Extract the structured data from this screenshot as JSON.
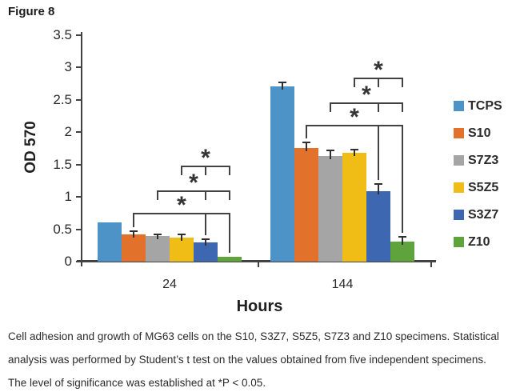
{
  "figure_label": "Figure 8",
  "chart_data": {
    "type": "bar",
    "title": "",
    "xlabel": "Hours",
    "ylabel": "OD 570",
    "ylim": [
      0,
      3.5
    ],
    "yticks": [
      0,
      0.5,
      1,
      1.5,
      2,
      2.5,
      3,
      3.5
    ],
    "grid": false,
    "legend_position": "right",
    "categories": [
      "24",
      "144"
    ],
    "series": [
      {
        "name": "TCPS",
        "color": "#4d93c8",
        "values": [
          0.6,
          2.7
        ],
        "errors": [
          0,
          0.06
        ]
      },
      {
        "name": "S10",
        "color": "#e2712b",
        "values": [
          0.42,
          1.75
        ],
        "errors": [
          0.05,
          0.09
        ]
      },
      {
        "name": "S7Z3",
        "color": "#a5a5a5",
        "values": [
          0.4,
          1.63
        ],
        "errors": [
          0.02,
          0.08
        ]
      },
      {
        "name": "S5Z5",
        "color": "#f0bd17",
        "values": [
          0.37,
          1.68
        ],
        "errors": [
          0.05,
          0.05
        ]
      },
      {
        "name": "S3Z7",
        "color": "#3d67b1",
        "values": [
          0.3,
          1.09
        ],
        "errors": [
          0.04,
          0.11
        ]
      },
      {
        "name": "Z10",
        "color": "#5fa33d",
        "values": [
          0.08,
          0.31
        ],
        "errors": [
          0,
          0.07
        ]
      }
    ],
    "significance_brackets": [
      {
        "category": "24",
        "from": "S5Z5",
        "to": "Z10",
        "mid": "S3Z7",
        "label": "*"
      },
      {
        "category": "24",
        "from": "S7Z3",
        "to": "Z10",
        "mid": "S3Z7",
        "label": "*"
      },
      {
        "category": "24",
        "from": "S10",
        "to": "Z10",
        "mid": "S3Z7",
        "label": "*",
        "drops_to_bars": true
      },
      {
        "category": "144",
        "from": "S5Z5",
        "to": "Z10",
        "mid": "S3Z7",
        "label": "*"
      },
      {
        "category": "144",
        "from": "S7Z3",
        "to": "Z10",
        "mid": "S3Z7",
        "label": "*"
      },
      {
        "category": "144",
        "from": "S10",
        "to": "Z10",
        "mid": "S3Z7",
        "label": "*",
        "drops_to_bars": true
      }
    ]
  },
  "caption": {
    "lines": [
      "Cell adhesion and growth of MG63 cells on the S10, S3Z7, S5Z5, S7Z3 and Z10 specimens. Statistical",
      "analysis was performed by Student’s t test on the values obtained from five independent specimens.",
      "The level of significance was established at *P < 0.05."
    ]
  }
}
